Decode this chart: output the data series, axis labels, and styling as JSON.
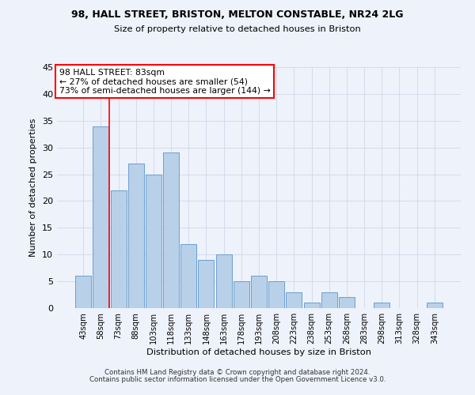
{
  "title1": "98, HALL STREET, BRISTON, MELTON CONSTABLE, NR24 2LG",
  "title2": "Size of property relative to detached houses in Briston",
  "xlabel": "Distribution of detached houses by size in Briston",
  "ylabel": "Number of detached properties",
  "categories": [
    "43sqm",
    "58sqm",
    "73sqm",
    "88sqm",
    "103sqm",
    "118sqm",
    "133sqm",
    "148sqm",
    "163sqm",
    "178sqm",
    "193sqm",
    "208sqm",
    "223sqm",
    "238sqm",
    "253sqm",
    "268sqm",
    "283sqm",
    "298sqm",
    "313sqm",
    "328sqm",
    "343sqm"
  ],
  "values": [
    6,
    34,
    22,
    27,
    25,
    29,
    12,
    9,
    10,
    5,
    6,
    5,
    3,
    1,
    3,
    2,
    0,
    1,
    0,
    0,
    1
  ],
  "bar_color": "#b8d0e8",
  "bar_edge_color": "#6a9fd0",
  "annotation_line1": "98 HALL STREET: 83sqm",
  "annotation_line2": "← 27% of detached houses are smaller (54)",
  "annotation_line3": "73% of semi-detached houses are larger (144) →",
  "redline_x": 1.5,
  "ylim": [
    0,
    45
  ],
  "yticks": [
    0,
    5,
    10,
    15,
    20,
    25,
    30,
    35,
    40,
    45
  ],
  "annotation_box_color": "white",
  "annotation_box_edge_color": "red",
  "footer1": "Contains HM Land Registry data © Crown copyright and database right 2024.",
  "footer2": "Contains public sector information licensed under the Open Government Licence v3.0.",
  "background_color": "#eef2fb",
  "grid_color": "#d0d8e8"
}
